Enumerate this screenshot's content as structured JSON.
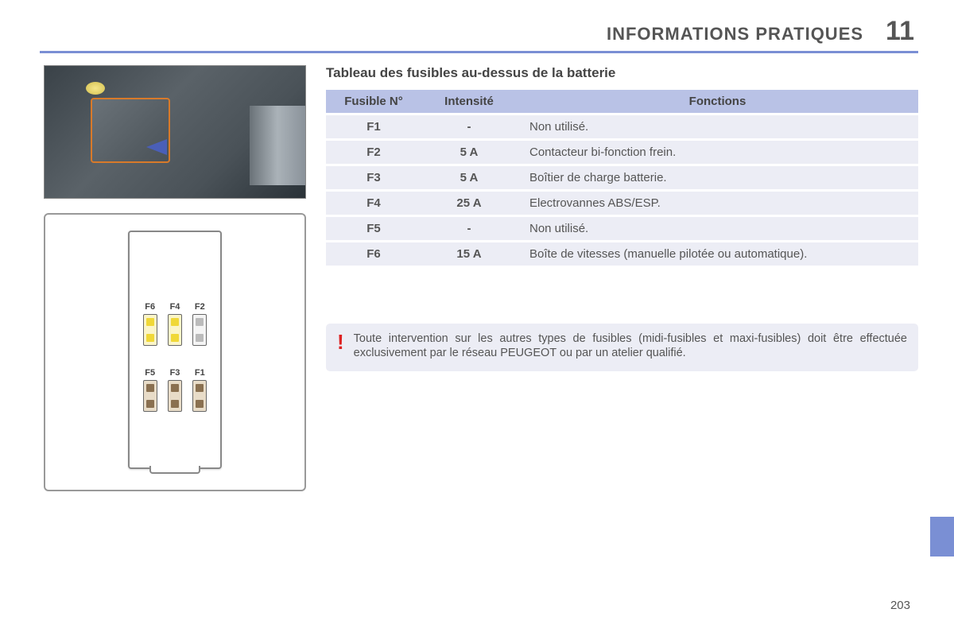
{
  "header": {
    "title": "INFORMATIONS PRATIQUES",
    "chapter_num": "11"
  },
  "colors": {
    "accent": "#7a8fd4",
    "table_header_bg": "#b9c2e6",
    "table_row_bg": "#ecedf5",
    "warning_bg": "#ecedf5",
    "warning_mark": "#d22",
    "text": "#555",
    "fuse_yellow": "#f0d838",
    "fuse_brown": "#8a7050"
  },
  "section_title": "Tableau des fusibles au-dessus de la batterie",
  "table": {
    "columns": [
      "Fusible N°",
      "Intensité",
      "Fonctions"
    ],
    "rows": [
      {
        "fuse": "F1",
        "rating": "-",
        "function": "Non utilisé."
      },
      {
        "fuse": "F2",
        "rating": "5 A",
        "function": "Contacteur bi-fonction frein."
      },
      {
        "fuse": "F3",
        "rating": "5 A",
        "function": "Boîtier de charge batterie."
      },
      {
        "fuse": "F4",
        "rating": "25 A",
        "function": "Electrovannes ABS/ESP."
      },
      {
        "fuse": "F5",
        "rating": "-",
        "function": "Non utilisé."
      },
      {
        "fuse": "F6",
        "rating": "15 A",
        "function": "Boîte de vitesses (manuelle pilotée ou automatique)."
      }
    ]
  },
  "diagram": {
    "slots": [
      {
        "label": "F6",
        "style": "yellow"
      },
      {
        "label": "F4",
        "style": "yellow"
      },
      {
        "label": "F2",
        "style": "empty"
      },
      {
        "label": "F5",
        "style": "brown"
      },
      {
        "label": "F3",
        "style": "brown"
      },
      {
        "label": "F1",
        "style": "brown"
      }
    ]
  },
  "warning": {
    "mark": "!",
    "text": "Toute intervention sur les autres types de fusibles (midi-fusibles et maxi-fusibles) doit être effectuée exclusivement par le réseau PEUGEOT ou par un atelier qualifié."
  },
  "page_number": "203"
}
